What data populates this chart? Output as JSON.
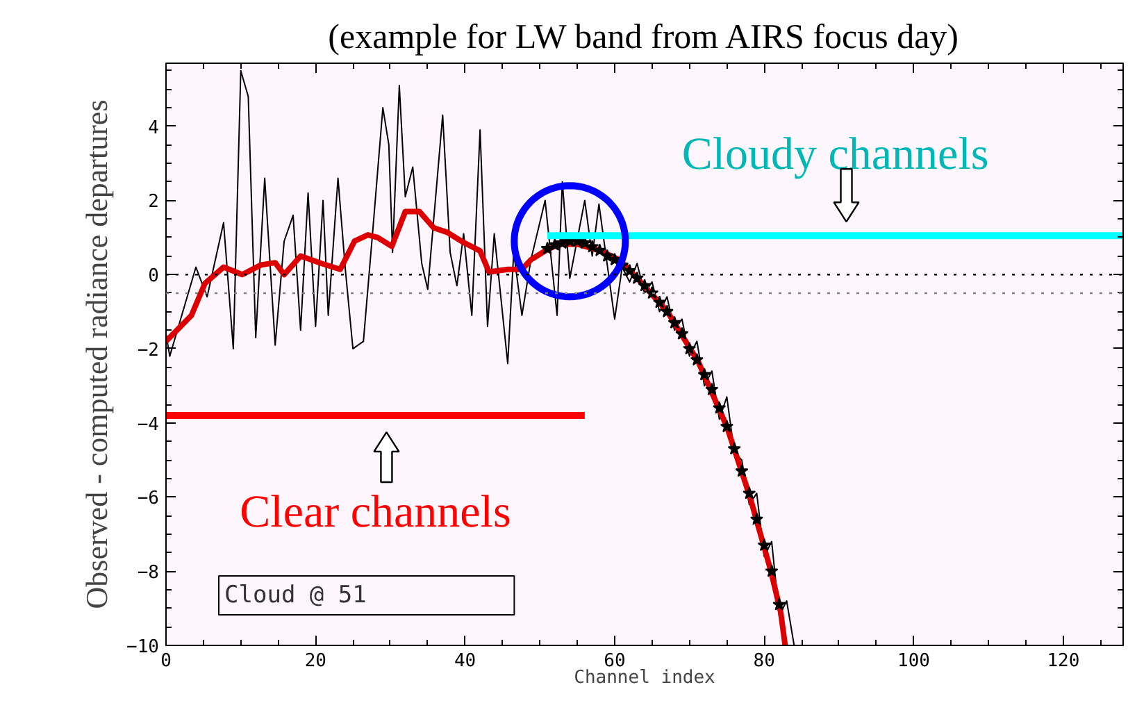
{
  "chart_data": {
    "type": "line",
    "title": "(example for LW band from AIRS focus day)",
    "xlabel": "Channel index",
    "ylabel": "Observed - computed radiance departures",
    "xlim": [
      0,
      128
    ],
    "ylim": [
      -10,
      5.7
    ],
    "xticks": [
      0,
      20,
      40,
      60,
      80,
      100,
      120
    ],
    "yticks": [
      -10,
      -8,
      -6,
      -4,
      -2,
      0,
      2,
      4
    ],
    "grid": false,
    "series": [
      {
        "color": "#000000",
        "x": [
          0,
          0.5,
          4,
          5.5,
          7.7,
          9,
          10,
          11,
          12,
          13.2,
          14.6,
          15.8,
          17,
          18,
          19,
          20,
          21,
          21.7,
          23,
          24,
          25,
          26.4,
          27.7,
          29,
          29.8,
          30.3,
          31.2,
          32,
          33,
          34.2,
          35,
          37,
          38,
          38.9,
          39.8,
          40.9,
          42,
          43,
          43.9,
          45.7,
          46.5,
          47.6,
          48.8,
          50.7,
          52.3,
          53,
          54,
          56,
          57,
          57.9,
          60,
          61,
          62,
          63,
          64,
          65,
          66,
          67,
          68,
          69,
          70,
          71,
          72,
          73,
          74,
          75,
          76,
          77,
          78,
          79,
          80,
          81,
          82,
          83,
          84
        ],
        "values": [
          -1.6,
          -2.2,
          0.2,
          -0.6,
          1.4,
          -2.0,
          5.5,
          4.8,
          -1.7,
          2.6,
          -1.9,
          0.9,
          1.6,
          -1.5,
          2.2,
          -1.4,
          2.0,
          -1.1,
          2.6,
          0.1,
          -2.0,
          -1.8,
          1.3,
          4.5,
          3.5,
          0.6,
          5.1,
          2.1,
          2.9,
          0.3,
          -0.4,
          4.3,
          0.6,
          -0.3,
          1.1,
          -1.1,
          3.9,
          -1.4,
          1.1,
          -2.4,
          0.6,
          -1.1,
          0.4,
          2.0,
          -1.1,
          2.5,
          -0.1,
          2.0,
          0.5,
          1.9,
          -1.2,
          0.2,
          -0.2,
          0.3,
          -0.5,
          -0.2,
          -1.0,
          -0.6,
          -1.5,
          -1.2,
          -2.2,
          -1.8,
          -3.0,
          -2.6,
          -3.9,
          -3.3,
          -4.8,
          -5.0,
          -6.2,
          -5.9,
          -7.6,
          -7.2,
          -9.2,
          -8.8,
          -10.0
        ]
      },
      {
        "color": "#dd0000",
        "x": [
          0,
          3.4,
          5.2,
          7.7,
          10.2,
          12.7,
          14.6,
          15.8,
          18,
          20.8,
          23.3,
          25.2,
          27,
          28.3,
          30.2,
          32,
          33.9,
          35.8,
          37.6,
          39.5,
          42,
          43.2,
          45.7,
          47.6,
          48.8,
          50.7,
          52.5,
          55,
          58,
          60.7,
          63,
          67,
          71.2,
          75,
          78.1,
          80.9,
          82.2,
          82.8
        ],
        "values": [
          -1.8,
          -1.1,
          -0.24,
          0.2,
          0.0,
          0.26,
          0.32,
          0.0,
          0.5,
          0.3,
          0.14,
          0.9,
          1.07,
          1.0,
          0.76,
          1.7,
          1.7,
          1.26,
          1.14,
          0.9,
          0.64,
          0.07,
          0.14,
          0.14,
          0.4,
          0.64,
          0.82,
          0.82,
          0.65,
          0.39,
          -0.1,
          -0.98,
          -2.36,
          -4.1,
          -6.0,
          -8.0,
          -9.1,
          -10.0
        ]
      },
      {
        "type": "scatter",
        "marker": "star",
        "color": "#000000",
        "x": [
          51,
          52,
          53,
          54,
          55,
          56,
          57,
          58,
          59,
          60,
          61,
          62,
          63,
          64,
          65,
          66,
          67,
          68,
          69,
          70,
          71,
          72,
          73,
          74,
          75,
          76,
          77,
          78,
          79,
          80,
          81,
          82
        ],
        "values": [
          0.7,
          0.8,
          0.85,
          0.9,
          0.9,
          0.85,
          0.75,
          0.65,
          0.5,
          0.4,
          0.25,
          0.1,
          -0.1,
          -0.3,
          -0.5,
          -0.75,
          -1.0,
          -1.3,
          -1.6,
          -2.0,
          -2.3,
          -2.7,
          -3.1,
          -3.6,
          -4.1,
          -4.7,
          -5.3,
          -5.9,
          -6.6,
          -7.3,
          -8.0,
          -8.9
        ]
      },
      {
        "name": "Clear channels",
        "color": "#ff0000",
        "x": [
          0,
          56
        ],
        "values": [
          -3.8,
          -3.8
        ]
      },
      {
        "name": "Cloudy channels",
        "color": "#00ffff",
        "x": [
          51,
          128
        ],
        "values": [
          1.05,
          1.05
        ]
      }
    ],
    "ref_lines": [
      {
        "axis": "y",
        "value": 0,
        "color": "#000000",
        "line_style": "dotted"
      },
      {
        "axis": "y",
        "value": -0.5,
        "color": "#808080",
        "line_style": "dotted"
      }
    ],
    "annotations": [
      "Cloud @ 51"
    ]
  }
}
